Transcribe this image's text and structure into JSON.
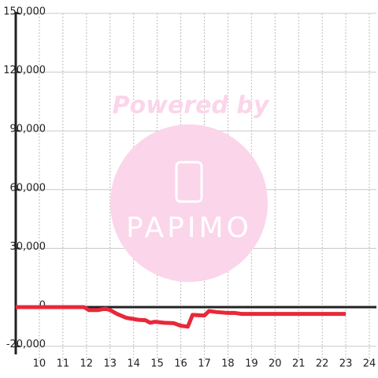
{
  "chart_data": {
    "type": "line",
    "watermark": {
      "line1": "Powered by",
      "line2": "PAPIMO"
    },
    "x": [
      9,
      11.9,
      12.1,
      12.5,
      12.8,
      13,
      13.3,
      13.7,
      14.2,
      14.5,
      14.7,
      14.9,
      15.3,
      15.7,
      16,
      16.3,
      16.5,
      17,
      17.2,
      17.5,
      18,
      18.3,
      18.6,
      19,
      23
    ],
    "series": [
      {
        "color": "#e8283a",
        "values": [
          0,
          0,
          -1500,
          -1500,
          -800,
          -1500,
          -3500,
          -5500,
          -6500,
          -6700,
          -8000,
          -7500,
          -8000,
          -8200,
          -9500,
          -10000,
          -4000,
          -4300,
          -2000,
          -2500,
          -3000,
          -3000,
          -3500,
          -3500,
          -3500
        ]
      }
    ],
    "xlim": [
      9,
      24.3
    ],
    "ylim": [
      -20000,
      150000
    ],
    "xticks": [
      10,
      11,
      12,
      13,
      14,
      15,
      16,
      17,
      18,
      19,
      20,
      21,
      22,
      23,
      24
    ],
    "yticks": [
      {
        "value": -20000,
        "label": "-20,000"
      },
      0,
      {
        "value": 30000,
        "label": "30,000"
      },
      {
        "value": 60000,
        "label": "60,000"
      },
      {
        "value": 90000,
        "label": "90,000"
      },
      {
        "value": 120000,
        "label": "120,000"
      },
      {
        "value": 150000,
        "label": "150,000"
      }
    ],
    "grid": true
  }
}
